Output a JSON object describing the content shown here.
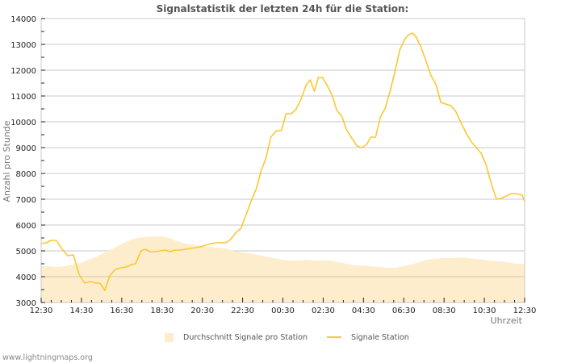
{
  "title": "Signalstatistik der letzten 24h für die Station:",
  "footer": "www.lightningmaps.org",
  "colors": {
    "average_fill": "#fdedcd",
    "signal_line": "#f9c832",
    "grid": "#c8c8c8",
    "baseline_grid": "#d6c7a8",
    "frame": "#c8c8c8"
  },
  "legend": {
    "average": "Durchschnitt Signale pro Station",
    "signal": "Signale Station"
  },
  "chart_data": {
    "type": "line",
    "title": "Signalstatistik der letzten 24h für die Station:",
    "xlabel": "Uhrzeit",
    "ylabel": "Anzahl pro Stunde",
    "ylim": [
      3000,
      14000
    ],
    "yticks": [
      3000,
      4000,
      5000,
      6000,
      7000,
      8000,
      9000,
      10000,
      11000,
      12000,
      13000,
      14000
    ],
    "xticks": [
      "12:30",
      "14:30",
      "16:30",
      "18:30",
      "20:30",
      "22:30",
      "00:30",
      "02:30",
      "04:30",
      "06:30",
      "08:30",
      "10:30",
      "12:30"
    ],
    "grid": true,
    "legend_position": "bottom",
    "x_hours_range": [
      0,
      24
    ],
    "series": [
      {
        "name": "Durchschnitt Signale pro Station",
        "kind": "area",
        "x_hours": [
          0,
          0.36,
          0.76,
          1.16,
          1.56,
          1.96,
          2.36,
          2.76,
          3.16,
          3.56,
          3.96,
          4.36,
          4.76,
          5.16,
          5.56,
          5.96,
          6.36,
          6.76,
          7.16,
          7.56,
          7.96,
          8.36,
          8.76,
          9.16,
          9.56,
          9.96,
          10.36,
          10.76,
          11.16,
          11.56,
          11.96,
          12.36,
          12.76,
          13.16,
          13.56,
          13.96,
          14.36,
          14.76,
          15.16,
          15.56,
          15.96,
          16.36,
          16.76,
          17.16,
          17.56,
          17.96,
          18.36,
          18.76,
          19.16,
          19.56,
          19.96,
          20.36,
          20.76,
          21.16,
          21.56,
          21.96,
          22.36,
          22.76,
          23.16,
          23.56,
          24
        ],
        "values": [
          4406,
          4406,
          4375,
          4406,
          4469,
          4531,
          4656,
          4781,
          4938,
          5094,
          5250,
          5406,
          5500,
          5531,
          5563,
          5563,
          5500,
          5375,
          5281,
          5250,
          5188,
          5156,
          5125,
          5094,
          5000,
          4938,
          4906,
          4844,
          4781,
          4719,
          4656,
          4625,
          4625,
          4656,
          4625,
          4625,
          4625,
          4563,
          4500,
          4438,
          4438,
          4406,
          4375,
          4344,
          4344,
          4406,
          4469,
          4563,
          4656,
          4688,
          4719,
          4719,
          4750,
          4719,
          4688,
          4656,
          4625,
          4594,
          4563,
          4500,
          4500
        ]
      },
      {
        "name": "Signale Station",
        "kind": "line",
        "x_hours": [
          0,
          0.24,
          0.48,
          0.76,
          1.04,
          1.32,
          1.6,
          1.88,
          2.16,
          2.44,
          2.72,
          2.92,
          3.16,
          3.4,
          3.68,
          3.96,
          4.24,
          4.48,
          4.68,
          4.96,
          5.16,
          5.4,
          5.68,
          5.88,
          6.16,
          6.4,
          6.64,
          6.92,
          7.16,
          7.4,
          7.68,
          7.92,
          8.16,
          8.44,
          8.68,
          8.92,
          9.16,
          9.4,
          9.64,
          9.92,
          10.16,
          10.44,
          10.68,
          10.92,
          11.16,
          11.4,
          11.68,
          11.92,
          12.16,
          12.4,
          12.64,
          12.88,
          13.16,
          13.36,
          13.56,
          13.76,
          13.96,
          14.2,
          14.44,
          14.68,
          14.92,
          15.16,
          15.44,
          15.68,
          15.92,
          16.16,
          16.36,
          16.6,
          16.84,
          17.08,
          17.32,
          17.56,
          17.8,
          18.04,
          18.24,
          18.44,
          18.64,
          18.88,
          19.12,
          19.36,
          19.6,
          19.84,
          20.08,
          20.32,
          20.56,
          20.84,
          21.12,
          21.36,
          21.6,
          21.84,
          22.08,
          22.36,
          22.6,
          22.84,
          23.08,
          23.32,
          23.56,
          23.88,
          24
        ],
        "values": [
          5281,
          5313,
          5406,
          5406,
          5063,
          4813,
          4844,
          4094,
          3750,
          3813,
          3750,
          3750,
          3469,
          4031,
          4281,
          4344,
          4375,
          4469,
          4500,
          5000,
          5063,
          4969,
          4969,
          5000,
          5031,
          4969,
          5031,
          5031,
          5063,
          5094,
          5125,
          5156,
          5219,
          5281,
          5313,
          5313,
          5313,
          5438,
          5688,
          5875,
          6375,
          6969,
          7406,
          8094,
          8594,
          9406,
          9656,
          9656,
          10313,
          10313,
          10469,
          10844,
          11438,
          11625,
          11188,
          11719,
          11719,
          11406,
          11031,
          10438,
          10219,
          9688,
          9344,
          9063,
          9000,
          9125,
          9406,
          9406,
          10188,
          10531,
          11188,
          11938,
          12781,
          13188,
          13375,
          13438,
          13250,
          12844,
          12313,
          11781,
          11438,
          10750,
          10688,
          10625,
          10438,
          9969,
          9531,
          9219,
          9000,
          8781,
          8344,
          7563,
          7000,
          7031,
          7125,
          7219,
          7219,
          7156,
          6906,
          6844
        ]
      }
    ]
  }
}
